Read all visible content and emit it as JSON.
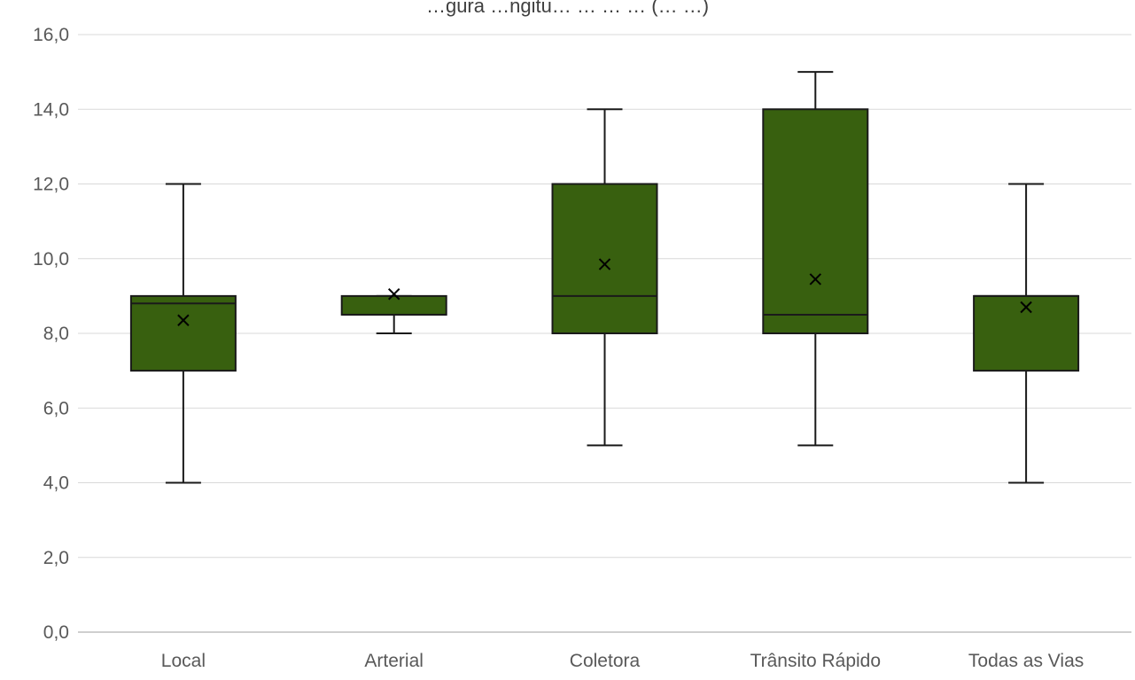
{
  "chart_data": {
    "type": "box",
    "title": "…gura  …ngitu…  …  …  … (… …)",
    "xlabel": "",
    "ylabel": "",
    "ylim": [
      0,
      16
    ],
    "y_ticks": [
      "0,0",
      "2,0",
      "4,0",
      "6,0",
      "8,0",
      "10,0",
      "12,0",
      "14,0",
      "16,0"
    ],
    "y_tick_values": [
      0,
      2,
      4,
      6,
      8,
      10,
      12,
      14,
      16
    ],
    "grid": true,
    "legend": "none",
    "categories": [
      "Local",
      "Arterial",
      "Coletora",
      "Trânsito Rápido",
      "Todas as Vias"
    ],
    "boxes": [
      {
        "category": "Local",
        "min": 4.0,
        "q1": 7.0,
        "median": 8.8,
        "q3": 9.0,
        "max": 12.0,
        "mean": 8.35
      },
      {
        "category": "Arterial",
        "min": 8.0,
        "q1": 8.5,
        "median": 8.5,
        "q3": 9.0,
        "max": 9.0,
        "mean": 9.05
      },
      {
        "category": "Coletora",
        "min": 5.0,
        "q1": 8.0,
        "median": 9.0,
        "q3": 12.0,
        "max": 14.0,
        "mean": 9.85
      },
      {
        "category": "Trânsito Rápido",
        "min": 5.0,
        "q1": 8.0,
        "median": 8.5,
        "q3": 14.0,
        "max": 15.0,
        "mean": 9.45
      },
      {
        "category": "Todas as Vias",
        "min": 4.0,
        "q1": 7.0,
        "median": 9.0,
        "q3": 9.0,
        "max": 12.0,
        "mean": 8.7
      }
    ],
    "colors": {
      "box_fill": "#38600F",
      "box_stroke": "#1a1a1a",
      "gridline": "#d9d9d9",
      "axis": "#bfbfbf",
      "tick_label": "#595959"
    }
  }
}
